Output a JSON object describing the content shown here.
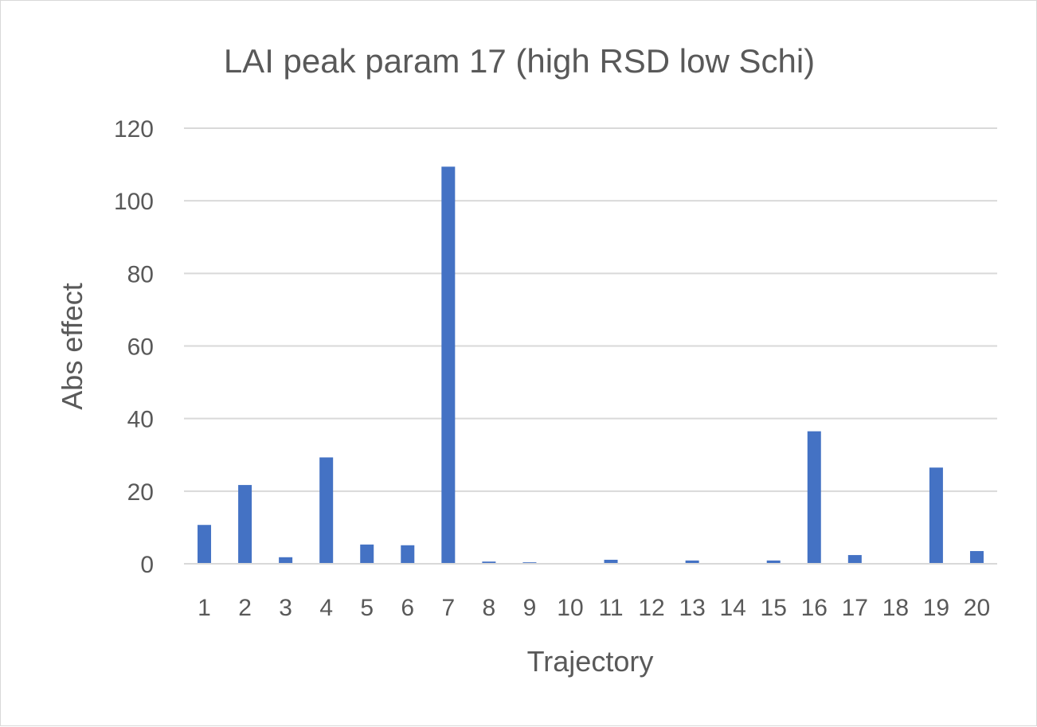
{
  "chart_data": {
    "type": "bar",
    "title": "LAI peak param 17 (high RSD low Schi)",
    "xlabel": "Trajectory",
    "ylabel": "Abs effect",
    "categories": [
      "1",
      "2",
      "3",
      "4",
      "5",
      "6",
      "7",
      "8",
      "9",
      "10",
      "11",
      "12",
      "13",
      "14",
      "15",
      "16",
      "17",
      "18",
      "19",
      "20"
    ],
    "values": [
      10.7,
      21.7,
      1.8,
      29.3,
      5.3,
      5.1,
      109.4,
      0.6,
      0.4,
      0,
      1.1,
      0,
      0.9,
      0,
      0.9,
      36.5,
      2.4,
      0,
      26.5,
      3.5
    ],
    "yticks": [
      "0",
      "20",
      "40",
      "60",
      "80",
      "100",
      "120"
    ],
    "ylim": [
      0,
      120
    ],
    "grid": true,
    "legend": "none",
    "color": "#4472c4"
  }
}
